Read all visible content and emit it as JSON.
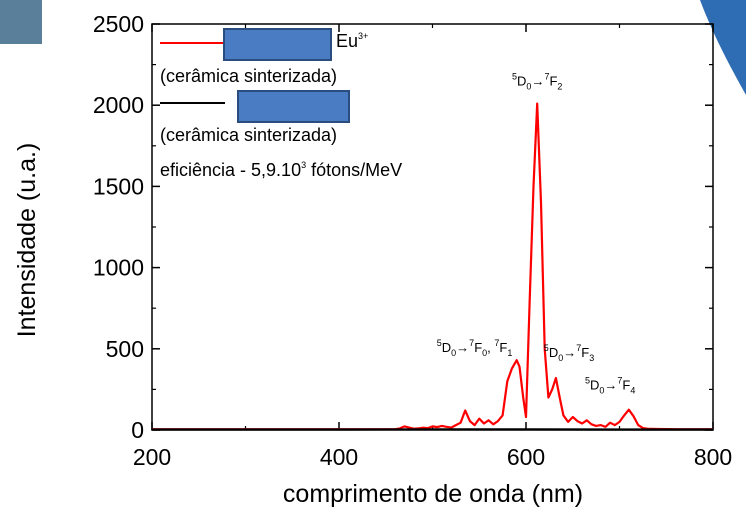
{
  "chart_data": {
    "type": "line",
    "xlabel": "comprimento de onda (nm)",
    "ylabel": "Intensidade (u.a.)",
    "xlim": [
      200,
      800
    ],
    "ylim": [
      0,
      2500
    ],
    "xticks": [
      "200",
      "400",
      "600",
      "800"
    ],
    "yticks": [
      "0",
      "500",
      "1000",
      "1500",
      "2000",
      "2500"
    ],
    "legend_position": "top-left",
    "series": [
      {
        "color": "#ff0000",
        "x": [
          200,
          460,
          465,
          470,
          475,
          480,
          485,
          490,
          495,
          500,
          505,
          510,
          515,
          520,
          525,
          530,
          535,
          540,
          545,
          550,
          555,
          560,
          565,
          570,
          575,
          580,
          585,
          590,
          593,
          597,
          600,
          604,
          608,
          612,
          616,
          620,
          624,
          628,
          632,
          636,
          640,
          645,
          650,
          655,
          660,
          665,
          670,
          675,
          680,
          685,
          690,
          695,
          700,
          705,
          710,
          715,
          720,
          725,
          730,
          740,
          760,
          800
        ],
        "y": [
          5,
          5,
          10,
          22,
          15,
          8,
          10,
          14,
          12,
          22,
          18,
          25,
          20,
          15,
          30,
          45,
          120,
          55,
          30,
          70,
          40,
          60,
          35,
          55,
          90,
          300,
          380,
          430,
          390,
          200,
          80,
          800,
          1500,
          2010,
          1400,
          500,
          200,
          250,
          320,
          200,
          90,
          50,
          80,
          55,
          40,
          60,
          35,
          25,
          30,
          20,
          45,
          30,
          50,
          90,
          125,
          85,
          30,
          12,
          8,
          6,
          5,
          5
        ]
      },
      {
        "color": "#000000",
        "x": [
          200,
          300,
          400,
          500,
          600,
          700,
          800
        ],
        "y": [
          3,
          3,
          3,
          4,
          4,
          3,
          3
        ]
      }
    ],
    "legend": [
      {
        "line1_suffix": "Eu",
        "sup": "3+",
        "line2": "(cerâmica sinterizada)"
      },
      {
        "line2": "(cerâmica sinterizada)"
      }
    ],
    "legend_note": {
      "prefix": "eficiência - 5,9.10",
      "sup": "3",
      "suffix": " fótons/MeV"
    },
    "annotations": [
      {
        "x": 612,
        "y": 2120,
        "text": [
          [
            "5",
            "sup"
          ],
          [
            "D",
            ""
          ],
          [
            "0",
            "sub"
          ],
          [
            "→",
            ""
          ],
          [
            "7",
            "sup"
          ],
          [
            "F",
            ""
          ],
          [
            "2",
            "sub"
          ]
        ]
      },
      {
        "x": 545,
        "y": 480,
        "text": [
          [
            "5",
            "sup"
          ],
          [
            "D",
            ""
          ],
          [
            "0",
            "sub"
          ],
          [
            "→",
            ""
          ],
          [
            "7",
            "sup"
          ],
          [
            "F",
            ""
          ],
          [
            "0",
            "sub"
          ],
          [
            ", ",
            ""
          ],
          [
            "7",
            "sup"
          ],
          [
            "F",
            ""
          ],
          [
            "1",
            "sub"
          ]
        ]
      },
      {
        "x": 646,
        "y": 450,
        "text": [
          [
            "5",
            "sup"
          ],
          [
            "D",
            ""
          ],
          [
            "0",
            "sub"
          ],
          [
            "→",
            ""
          ],
          [
            "7",
            "sup"
          ],
          [
            "F",
            ""
          ],
          [
            "3",
            "sub"
          ]
        ]
      },
      {
        "x": 690,
        "y": 250,
        "text": [
          [
            "5",
            "sup"
          ],
          [
            "D",
            ""
          ],
          [
            "0",
            "sub"
          ],
          [
            "→",
            ""
          ],
          [
            "7",
            "sup"
          ],
          [
            "F",
            ""
          ],
          [
            "4",
            "sub"
          ]
        ]
      }
    ]
  }
}
